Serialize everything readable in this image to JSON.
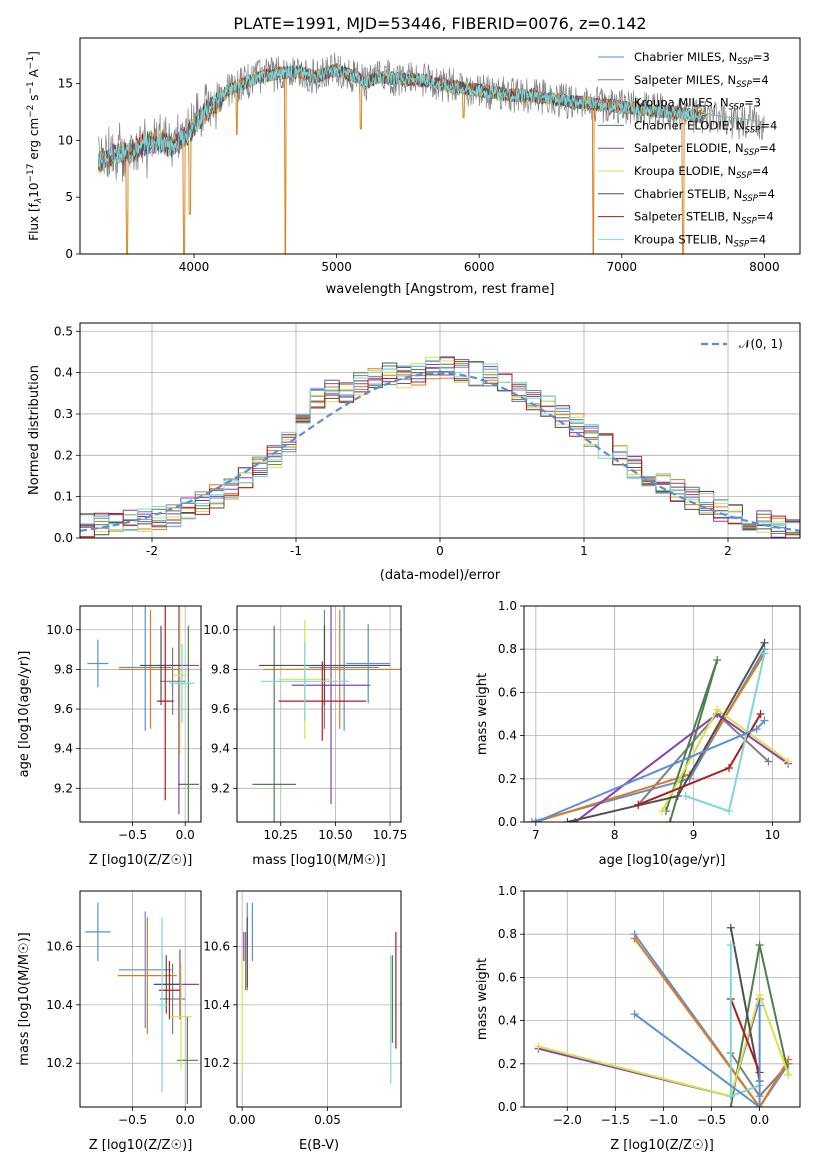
{
  "figure": {
    "title": "PLATE=1991, MJD=53446, FIBERID=0076, z=0.142"
  },
  "legend_labels": [
    [
      "Chabrier MILES, N",
      "SSP",
      "=3"
    ],
    [
      "Salpeter MILES, N",
      "SSP",
      "=4"
    ],
    [
      "Kroupa MILES, N",
      "SSP",
      "=3"
    ],
    [
      "Chabrier ELODIE, N",
      "SSP",
      "=4"
    ],
    [
      "Salpeter ELODIE, N",
      "SSP",
      "=4"
    ],
    [
      "Kroupa ELODIE, N",
      "SSP",
      "=4"
    ],
    [
      "Chabrier STELIB, N",
      "SSP",
      "=4"
    ],
    [
      "Salpeter STELIB, N",
      "SSP",
      "=4"
    ],
    [
      "Kroupa STELIB, N",
      "SSP",
      "=4"
    ]
  ],
  "model_colors": [
    "#5b8fd6",
    "#808080",
    "#e07a1f",
    "#4f7f4f",
    "#8b3fb0",
    "#d8e24a",
    "#505050",
    "#b01c1c",
    "#7ad8dc"
  ],
  "chart_data": [
    {
      "id": "spectrum",
      "type": "line",
      "xlabel": "wavelength [Angstrom, rest frame]",
      "ylabel": "Flux [f_λ 10^-17 erg cm^-2 s^-1 A^-1]",
      "xlim": [
        3200,
        8250
      ],
      "ylim": [
        0,
        19
      ],
      "xticks": [
        4000,
        5000,
        6000,
        7000,
        8000
      ],
      "yticks": [
        0,
        5,
        10,
        15
      ],
      "grid": false,
      "legend": "top-right",
      "observed_continuum": {
        "x": [
          3350,
          3450,
          3550,
          3650,
          3750,
          3850,
          3950,
          4050,
          4150,
          4250,
          4350,
          4450,
          4550,
          4650,
          4750,
          4850,
          5000,
          5150,
          5200,
          5300,
          5450,
          5600,
          5750,
          5900,
          6050,
          6200,
          6350,
          6500,
          6650,
          6800,
          6950,
          7100,
          7250,
          7400,
          7550,
          7700,
          7850,
          8000
        ],
        "y": [
          8.2,
          8.8,
          9.0,
          9.6,
          10.0,
          9.5,
          10.5,
          12.0,
          13.2,
          14.5,
          15.0,
          15.5,
          15.8,
          16.0,
          16.0,
          15.6,
          16.2,
          15.5,
          15.0,
          15.6,
          15.4,
          15.3,
          14.9,
          14.6,
          14.3,
          14.0,
          13.9,
          13.7,
          13.4,
          13.2,
          13.0,
          12.8,
          12.6,
          12.4,
          12.1,
          11.8,
          11.6,
          11.3
        ]
      },
      "absorption_features": [
        {
          "x": 3530,
          "y": 0
        },
        {
          "x": 3930,
          "y": 0
        },
        {
          "x": 3970,
          "y": 3.5
        },
        {
          "x": 4300,
          "y": 10.5
        },
        {
          "x": 4640,
          "y": 0
        },
        {
          "x": 5170,
          "y": 11.0
        },
        {
          "x": 5890,
          "y": 12.0
        },
        {
          "x": 6800,
          "y": 0
        },
        {
          "x": 7430,
          "y": 0
        }
      ]
    },
    {
      "id": "residuals",
      "type": "line",
      "xlabel": "(data-model)/error",
      "ylabel": "Normed distribution",
      "xlim": [
        -2.5,
        2.5
      ],
      "ylim": [
        0,
        0.52
      ],
      "xticks": [
        -2,
        -1,
        0,
        1,
        2
      ],
      "yticks": [
        0,
        0.1,
        0.2,
        0.3,
        0.4,
        0.5
      ],
      "grid": true,
      "legend": "top-right",
      "reference_curve": {
        "label": "𝒩(0, 1)",
        "mu": 0,
        "sigma": 1
      },
      "histogram_bin_width": 0.1,
      "histogram_envelope": {
        "x": [
          -2.5,
          -2.2,
          -2.0,
          -1.8,
          -1.6,
          -1.4,
          -1.2,
          -1.0,
          -0.9,
          -0.8,
          -0.6,
          -0.4,
          -0.2,
          0.0,
          0.2,
          0.4,
          0.6,
          0.8,
          1.0,
          1.2,
          1.4,
          1.6,
          1.8,
          2.0,
          2.2,
          2.4,
          2.5
        ],
        "y": [
          0.03,
          0.035,
          0.045,
          0.06,
          0.09,
          0.13,
          0.18,
          0.25,
          0.33,
          0.35,
          0.36,
          0.4,
          0.39,
          0.42,
          0.4,
          0.39,
          0.34,
          0.31,
          0.26,
          0.21,
          0.16,
          0.12,
          0.09,
          0.06,
          0.04,
          0.025,
          0.02
        ]
      }
    },
    {
      "id": "age_vs_metallicity",
      "type": "scatter",
      "xlabel": "Z [log10(Z/Z☉)]",
      "ylabel": "age [log10(age/yr)]",
      "xlim": [
        -1.0,
        0.15
      ],
      "ylim": [
        9.03,
        10.12
      ],
      "xticks": [
        -0.5,
        0.0
      ],
      "xticklabels": [
        "−0.5",
        "0.0"
      ],
      "yticks": [
        9.2,
        9.4,
        9.6,
        9.8,
        10.0
      ],
      "grid": true,
      "points": [
        {
          "model": 0,
          "x": -0.38,
          "y": 9.81,
          "xerr": 0.25,
          "yerr": 0.32
        },
        {
          "model": 1,
          "x": -0.12,
          "y": 9.74,
          "xerr": 0.12,
          "yerr": 0.17
        },
        {
          "model": 2,
          "x": -0.33,
          "y": 9.8,
          "xerr": 0.3,
          "yerr": 0.3
        },
        {
          "model": 3,
          "x": 0.03,
          "y": 9.22,
          "xerr": 0.1,
          "yerr": 0.8
        },
        {
          "model": 4,
          "x": -0.06,
          "y": 9.82,
          "xerr": 0.19,
          "yerr": 0.75
        },
        {
          "model": 5,
          "x": -0.05,
          "y": 9.77,
          "xerr": 0.06,
          "yerr": 0.4
        },
        {
          "model": 6,
          "x": -0.23,
          "y": 9.82,
          "xerr": 0.2,
          "yerr": 0.2
        },
        {
          "model": 7,
          "x": -0.19,
          "y": 9.64,
          "xerr": 0.08,
          "yerr": 0.5
        },
        {
          "model": 8,
          "x": -0.03,
          "y": 9.73,
          "xerr": 0.12,
          "yerr": 0.2
        },
        {
          "model": 9,
          "x": -0.83,
          "y": 9.83,
          "xerr": 0.1,
          "yerr": 0.12
        }
      ]
    },
    {
      "id": "age_vs_mass",
      "type": "scatter",
      "xlabel": "mass [log10(M/M☉)]",
      "ylabel": "",
      "xlim": [
        10.05,
        10.8
      ],
      "ylim": [
        9.03,
        10.12
      ],
      "xticks": [
        10.25,
        10.5,
        10.75
      ],
      "xticklabels": [
        "10.25",
        "10.50",
        "10.75"
      ],
      "yticks": [
        9.2,
        9.4,
        9.6,
        9.8,
        10.0
      ],
      "grid": true,
      "points": [
        {
          "model": 0,
          "x": 10.54,
          "y": 9.81,
          "xerr": 0.16,
          "yerr": 0.32
        },
        {
          "model": 1,
          "x": 10.45,
          "y": 9.8,
          "xerr": 0.15,
          "yerr": 0.3
        },
        {
          "model": 2,
          "x": 10.52,
          "y": 9.8,
          "xerr": 0.35,
          "yerr": 0.3
        },
        {
          "model": 3,
          "x": 10.22,
          "y": 9.22,
          "xerr": 0.1,
          "yerr": 0.8
        },
        {
          "model": 4,
          "x": 10.48,
          "y": 9.72,
          "xerr": 0.18,
          "yerr": 0.6
        },
        {
          "model": 5,
          "x": 10.36,
          "y": 9.75,
          "xerr": 0.12,
          "yerr": 0.3
        },
        {
          "model": 6,
          "x": 10.45,
          "y": 9.82,
          "xerr": 0.3,
          "yerr": 0.2
        },
        {
          "model": 7,
          "x": 10.44,
          "y": 9.64,
          "xerr": 0.2,
          "yerr": 0.2
        },
        {
          "model": 8,
          "x": 10.36,
          "y": 9.74,
          "xerr": 0.2,
          "yerr": 0.2
        },
        {
          "model": 9,
          "x": 10.65,
          "y": 9.83,
          "xerr": 0.1,
          "yerr": 0.2
        }
      ]
    },
    {
      "id": "mass_weight_vs_age",
      "type": "line",
      "xlabel": "age [log10(age/yr)]",
      "ylabel": "mass weight",
      "xlim": [
        6.85,
        10.35
      ],
      "ylim": [
        0,
        1.0
      ],
      "xticks": [
        7,
        8,
        9,
        10
      ],
      "yticks": [
        0,
        0.2,
        0.4,
        0.6,
        0.8,
        1.0
      ],
      "grid": true,
      "series": [
        {
          "model": 0,
          "x": [
            6.95,
            8.95,
            9.9
          ],
          "y": [
            0.0,
            0.2,
            0.8
          ]
        },
        {
          "model": 1,
          "x": [
            8.3,
            9.3,
            9.95
          ],
          "y": [
            0.08,
            0.5,
            0.28
          ]
        },
        {
          "model": 2,
          "x": [
            7.0,
            8.95,
            9.9
          ],
          "y": [
            0.0,
            0.22,
            0.78
          ]
        },
        {
          "model": 3,
          "x": [
            8.7,
            9.3,
            8.65
          ],
          "y": [
            0.0,
            0.75,
            0.05
          ]
        },
        {
          "model": 4,
          "x": [
            7.5,
            9.3,
            10.2
          ],
          "y": [
            0.0,
            0.5,
            0.27
          ]
        },
        {
          "model": 5,
          "x": [
            8.6,
            9.3,
            10.2
          ],
          "y": [
            0.05,
            0.52,
            0.28
          ]
        },
        {
          "model": 6,
          "x": [
            7.4,
            8.8,
            9.9
          ],
          "y": [
            0.0,
            0.12,
            0.83
          ]
        },
        {
          "model": 7,
          "x": [
            8.3,
            9.45,
            9.85
          ],
          "y": [
            0.08,
            0.25,
            0.5
          ]
        },
        {
          "model": 8,
          "x": [
            8.9,
            9.45,
            9.9
          ],
          "y": [
            0.12,
            0.05,
            0.78
          ]
        },
        {
          "model": 9,
          "x": [
            7.0,
            9.8,
            9.9
          ],
          "y": [
            0.0,
            0.43,
            0.47
          ]
        }
      ]
    },
    {
      "id": "mass_vs_metallicity",
      "type": "scatter",
      "xlabel": "Z [log10(Z/Z☉)]",
      "ylabel": "mass [log10(M/M☉)]",
      "xlim": [
        -1.0,
        0.15
      ],
      "ylim": [
        10.05,
        10.79
      ],
      "xticks": [
        -0.5,
        0.0
      ],
      "xticklabels": [
        "−0.5",
        "0.0"
      ],
      "yticks": [
        10.2,
        10.4,
        10.6
      ],
      "grid": true,
      "points": [
        {
          "model": 0,
          "x": -0.38,
          "y": 10.52,
          "xerr": 0.25,
          "yerr": 0.2
        },
        {
          "model": 1,
          "x": -0.12,
          "y": 10.42,
          "xerr": 0.12,
          "yerr": 0.12
        },
        {
          "model": 2,
          "x": -0.36,
          "y": 10.5,
          "xerr": 0.28,
          "yerr": 0.2
        },
        {
          "model": 3,
          "x": 0.02,
          "y": 10.21,
          "xerr": 0.1,
          "yerr": 0.15
        },
        {
          "model": 4,
          "x": -0.05,
          "y": 10.47,
          "xerr": 0.18,
          "yerr": 0.12
        },
        {
          "model": 5,
          "x": -0.04,
          "y": 10.36,
          "xerr": 0.1,
          "yerr": 0.18
        },
        {
          "model": 6,
          "x": -0.18,
          "y": 10.47,
          "xerr": 0.12,
          "yerr": 0.1
        },
        {
          "model": 7,
          "x": -0.15,
          "y": 10.45,
          "xerr": 0.1,
          "yerr": 0.1
        },
        {
          "model": 8,
          "x": -0.22,
          "y": 10.4,
          "xerr": 0.05,
          "yerr": 0.3
        },
        {
          "model": 9,
          "x": -0.83,
          "y": 10.65,
          "xerr": 0.12,
          "yerr": 0.1
        }
      ]
    },
    {
      "id": "mass_vs_extinction",
      "type": "scatter",
      "xlabel": "E(B-V)",
      "ylabel": "",
      "xlim": [
        -0.003,
        0.093
      ],
      "ylim": [
        10.05,
        10.79
      ],
      "xticks": [
        0.0,
        0.05
      ],
      "xticklabels": [
        "0.00",
        "0.05"
      ],
      "yticks": [
        10.2,
        10.4,
        10.6
      ],
      "grid": true,
      "points": [
        {
          "model": 0,
          "x": 0.003,
          "y": 10.6,
          "xerr": 0,
          "yerr": 0.15
        },
        {
          "model": 1,
          "x": 0.002,
          "y": 10.55,
          "xerr": 0,
          "yerr": 0.1
        },
        {
          "model": 2,
          "x": 0.003,
          "y": 10.55,
          "xerr": 0,
          "yerr": 0.1
        },
        {
          "model": 3,
          "x": 0.088,
          "y": 10.42,
          "xerr": 0,
          "yerr": 0.15
        },
        {
          "model": 4,
          "x": 0.001,
          "y": 10.6,
          "xerr": 0,
          "yerr": 0.05
        },
        {
          "model": 5,
          "x": 0.0,
          "y": 10.38,
          "xerr": 0,
          "yerr": 0.2
        },
        {
          "model": 6,
          "x": 0.003,
          "y": 10.58,
          "xerr": 0,
          "yerr": 0.12
        },
        {
          "model": 7,
          "x": 0.09,
          "y": 10.45,
          "xerr": 0,
          "yerr": 0.2
        },
        {
          "model": 8,
          "x": 0.087,
          "y": 10.35,
          "xerr": 0,
          "yerr": 0.22
        },
        {
          "model": 9,
          "x": 0.006,
          "y": 10.65,
          "xerr": 0,
          "yerr": 0.1
        }
      ]
    },
    {
      "id": "mass_weight_vs_metallicity",
      "type": "line",
      "xlabel": "Z [log10(Z/Z☉)]",
      "ylabel": "mass weight",
      "xlim": [
        -2.45,
        0.42
      ],
      "ylim": [
        0,
        1.0
      ],
      "xticks": [
        -2.0,
        -1.5,
        -1.0,
        -0.5,
        0.0
      ],
      "xticklabels": [
        "−2.0",
        "−1.5",
        "−1.0",
        "−0.5",
        "0.0"
      ],
      "yticks": [
        0,
        0.2,
        0.4,
        0.6,
        0.8,
        1.0
      ],
      "grid": true,
      "series": [
        {
          "model": 0,
          "x": [
            -1.3,
            0.0,
            0.3
          ],
          "y": [
            0.8,
            0.0,
            0.2
          ]
        },
        {
          "model": 1,
          "x": [
            -0.3,
            0.0,
            0.3
          ],
          "y": [
            0.25,
            0.05,
            0.2
          ]
        },
        {
          "model": 2,
          "x": [
            -1.3,
            0.0,
            0.3
          ],
          "y": [
            0.78,
            0.0,
            0.22
          ]
        },
        {
          "model": 3,
          "x": [
            -0.3,
            0.0,
            0.3
          ],
          "y": [
            0.0,
            0.75,
            0.15
          ]
        },
        {
          "model": 4,
          "x": [
            -2.3,
            -0.3,
            0.0
          ],
          "y": [
            0.27,
            0.05,
            0.5
          ]
        },
        {
          "model": 5,
          "x": [
            -2.3,
            -0.3,
            0.0,
            0.3
          ],
          "y": [
            0.28,
            0.05,
            0.52,
            0.15
          ]
        },
        {
          "model": 6,
          "x": [
            -0.3,
            0.0
          ],
          "y": [
            0.83,
            0.12
          ]
        },
        {
          "model": 7,
          "x": [
            -0.3,
            0.0
          ],
          "y": [
            0.5,
            0.16
          ]
        },
        {
          "model": 8,
          "x": [
            -0.3,
            -0.3,
            0.0
          ],
          "y": [
            0.75,
            0.05,
            0.1
          ]
        },
        {
          "model": 9,
          "x": [
            -1.3,
            0.0,
            0.0
          ],
          "y": [
            0.43,
            0.0,
            0.47
          ]
        }
      ]
    }
  ]
}
